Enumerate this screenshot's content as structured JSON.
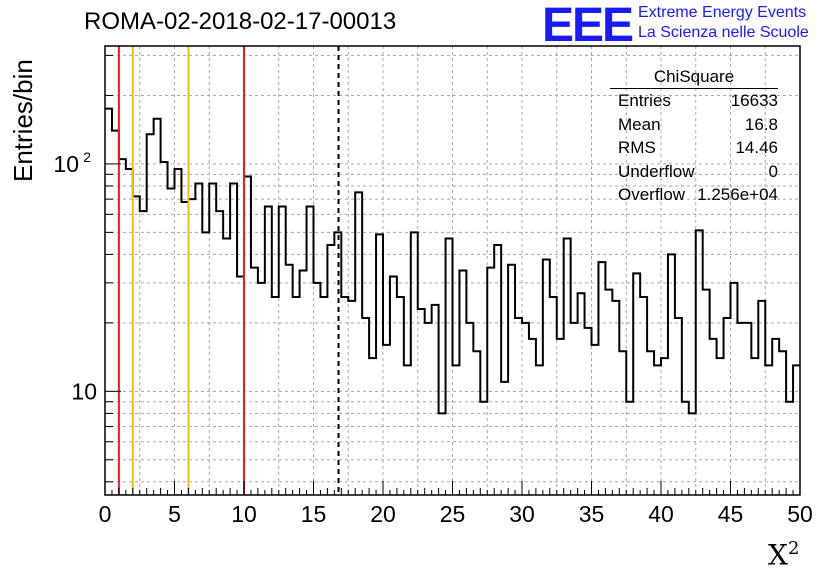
{
  "header": {
    "title": "ROMA-02-2018-02-17-00013",
    "logo_mark": "EEE",
    "logo_line1": "Extreme Energy Events",
    "logo_line2": "La Scienza nelle Scuole"
  },
  "axes": {
    "ylabel": "Entries/bin",
    "xlabel_base": "X",
    "xlabel_sup": "2"
  },
  "stats_box": {
    "title": "ChiSquare",
    "rows": [
      {
        "key": "Entries",
        "value": "16633"
      },
      {
        "key": "Mean",
        "value": "16.8"
      },
      {
        "key": "RMS",
        "value": "14.46"
      },
      {
        "key": "Underflow",
        "value": "0"
      },
      {
        "key": "Overflow",
        "value": "1.256e+04"
      }
    ]
  },
  "chart_data": {
    "type": "histogram",
    "title": "ROMA-02-2018-02-17-00013",
    "xlabel": "X²",
    "ylabel": "Entries/bin",
    "xlim": [
      0,
      50
    ],
    "ylim": [
      3.5,
      330
    ],
    "yscale": "log",
    "grid": true,
    "bin_width": 0.5,
    "x_ticks": [
      "0",
      "5",
      "10",
      "15",
      "20",
      "25",
      "30",
      "35",
      "40",
      "45",
      "50"
    ],
    "y_ticks": [
      "10",
      "10²"
    ],
    "colors": {
      "line": "#000000",
      "red": "#e02020",
      "yellow": "#f0c020"
    },
    "vertical_lines": [
      {
        "x": 1,
        "color": "red",
        "style": "solid"
      },
      {
        "x": 2,
        "color": "yellow",
        "style": "solid"
      },
      {
        "x": 6,
        "color": "yellow",
        "style": "solid"
      },
      {
        "x": 10,
        "color": "red",
        "style": "solid"
      },
      {
        "x": 16.8,
        "color": "black",
        "style": "dashed"
      }
    ],
    "values": [
      175,
      140,
      105,
      95,
      72,
      62,
      135,
      158,
      102,
      78,
      95,
      68,
      70,
      82,
      50,
      82,
      62,
      47,
      82,
      32,
      88,
      35,
      30,
      65,
      26,
      65,
      36,
      26,
      34,
      65,
      30,
      26,
      44,
      50,
      26,
      25,
      75,
      21,
      14,
      49,
      16,
      32,
      26,
      13,
      50,
      23,
      20,
      24,
      8,
      47,
      13,
      34,
      20,
      15,
      9,
      35,
      44,
      11,
      36,
      21,
      20,
      17,
      13,
      38,
      26,
      17,
      47,
      20,
      27,
      19,
      16,
      37,
      28,
      25,
      15,
      9,
      33,
      26,
      15,
      13,
      14,
      40,
      21,
      9,
      8,
      51,
      28,
      17,
      14,
      21,
      30,
      20,
      20,
      14,
      25,
      13,
      17,
      15,
      9,
      13
    ]
  }
}
